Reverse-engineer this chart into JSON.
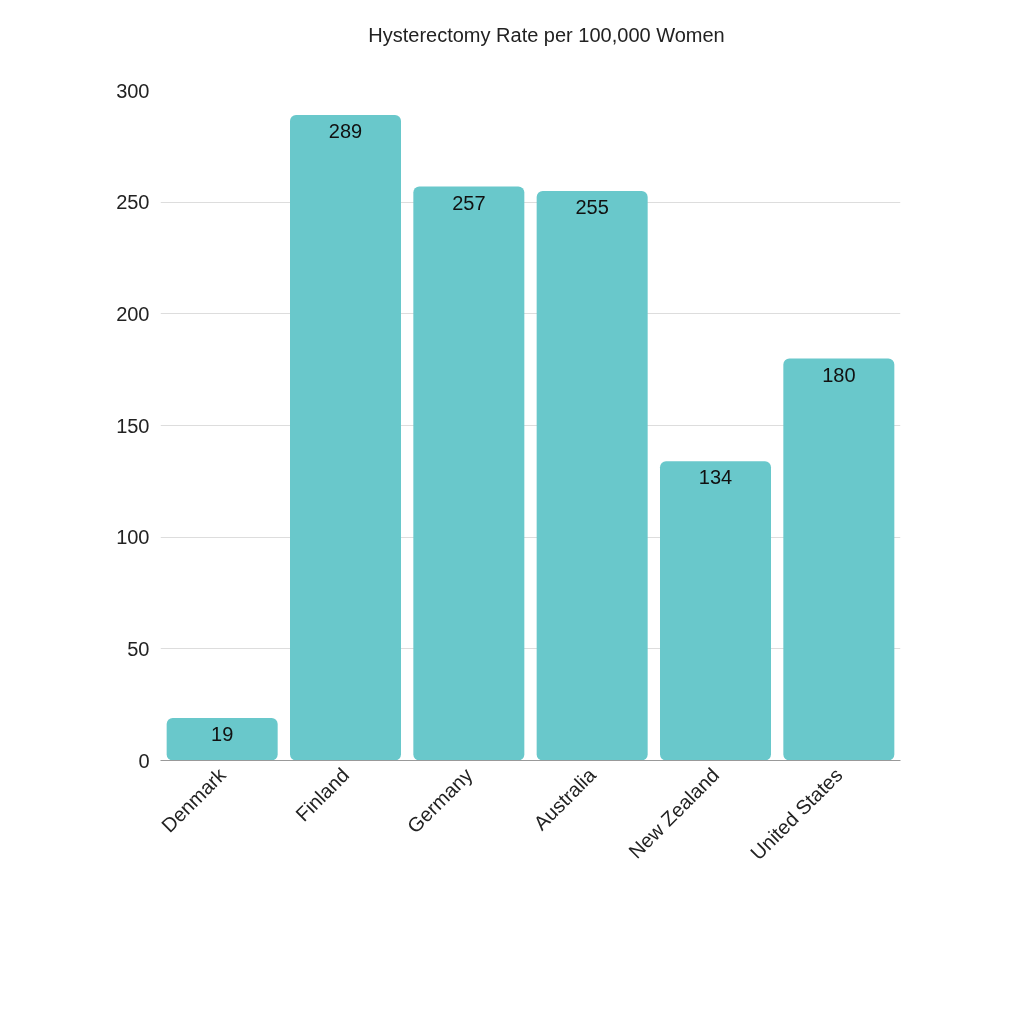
{
  "chart_data": {
    "type": "bar",
    "categories": [
      "Denmark",
      "Finland",
      "Germany",
      "Australia",
      "New Zealand",
      "United States"
    ],
    "series": [
      {
        "name": "Hysterectomy Rate per 100,000 Women",
        "color": "#69c8cb",
        "values": [
          19,
          289,
          257,
          255,
          134,
          180
        ]
      }
    ],
    "ylim": [
      0,
      300
    ],
    "yticks": [
      0,
      50,
      100,
      150,
      200,
      250,
      300
    ],
    "grid": "y",
    "legend": "top",
    "data_labels": true
  }
}
